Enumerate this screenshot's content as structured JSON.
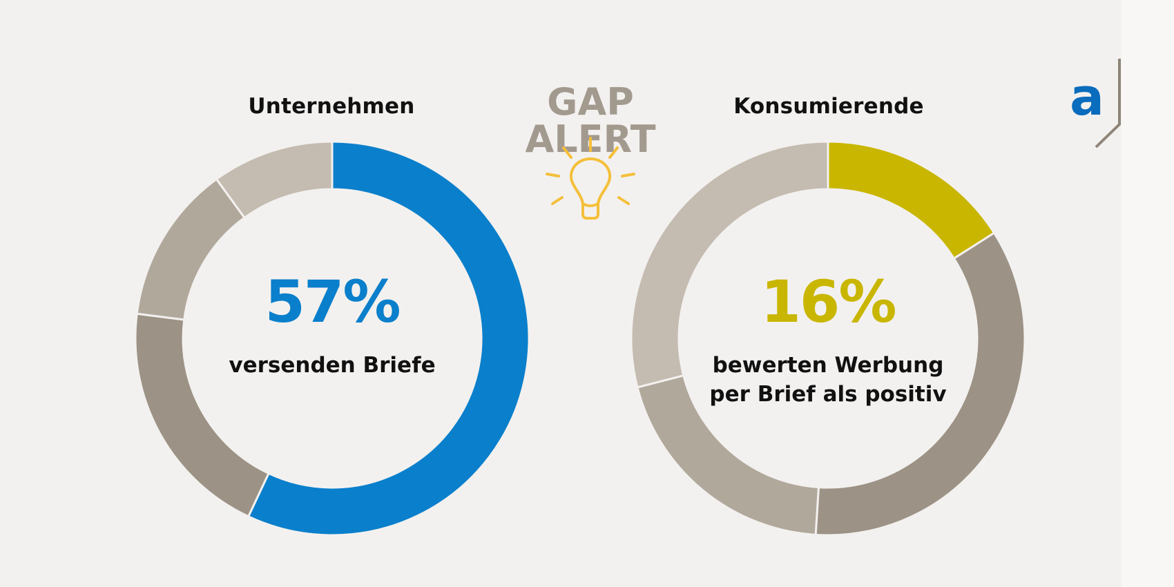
{
  "header": {
    "title": "GAP ALERT",
    "title_color": "#a39a8f"
  },
  "logo": {
    "letter": "a",
    "letter_color": "#0a6cbd",
    "frame_color": "#8f8578"
  },
  "icons": {
    "bulb": "lightbulb-icon",
    "bulb_color": "#f4bf3a"
  },
  "chart_data": [
    {
      "type": "pie",
      "title": "Unternehmen",
      "headline": "57%",
      "caption": [
        "versenden Briefe"
      ],
      "accent": "#0a7fcb",
      "series": [
        {
          "value": 57,
          "color": "#0a7fcb"
        },
        {
          "value": 20,
          "color": "#9c9285"
        },
        {
          "value": 13,
          "color": "#b1a89c"
        },
        {
          "value": 10,
          "color": "#c4bbb1"
        }
      ]
    },
    {
      "type": "pie",
      "title": "Konsumierende",
      "headline": "16%",
      "caption": [
        "bewerten Werbung",
        "per Brief als positiv"
      ],
      "accent": "#c9b600",
      "series": [
        {
          "value": 16,
          "color": "#c9b600"
        },
        {
          "value": 35,
          "color": "#9c9285"
        },
        {
          "value": 20,
          "color": "#b1a89c"
        },
        {
          "value": 29,
          "color": "#c4bbb1"
        }
      ]
    }
  ]
}
